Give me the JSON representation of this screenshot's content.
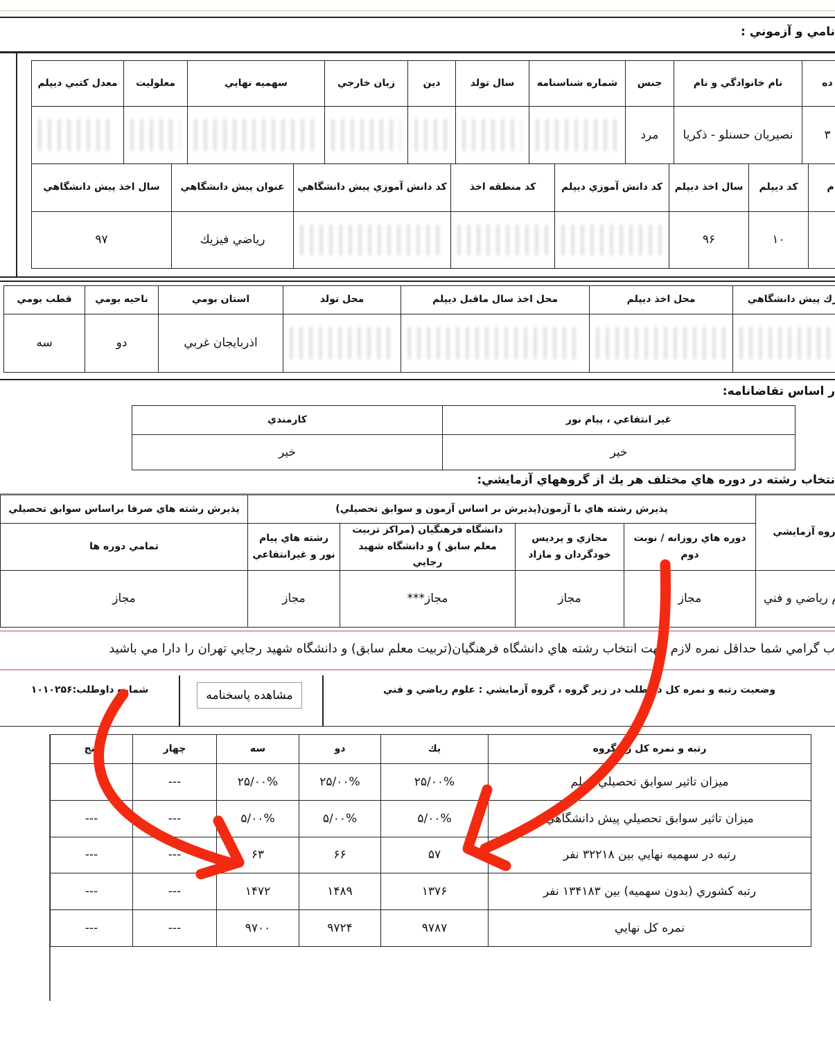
{
  "section_personal": {
    "title": "نامي و آزموني :",
    "headers": [
      "ده",
      "نام خانوادگي و نام",
      "جنس",
      "شماره شناسنامه",
      "سال تولد",
      "دين",
      "زبان خارجي",
      "سهميه نهايي",
      "معلوليت",
      "معدل كتبي ديپلم"
    ],
    "values": [
      "۳",
      "نصيريان حسنلو - ذكريا",
      "مرد",
      "",
      "",
      "",
      "",
      "",
      "",
      ""
    ],
    "headers2": [
      "م",
      "كد ديپلم",
      "سال اخذ ديپلم",
      "كد دانش آموزي ديپلم",
      "كد منطقه اخذ",
      "كد دانش آموزي پيش دانشگاهي",
      "عنوان پيش دانشگاهي",
      "سال اخذ پيش دانشگاهي"
    ],
    "values2": [
      "",
      "۱۰",
      "۹۶",
      "",
      "",
      "",
      "رياضي فيزيك",
      "۹۷"
    ]
  },
  "section_location": {
    "headers": [
      "رك پيش دانشگاهي",
      "محل اخذ ديپلم",
      "محل اخذ سال ماقبل ديپلم",
      "محل تولد",
      "استان بومي",
      "ناحيه بومي",
      "قطب بومي"
    ],
    "values": [
      "",
      "",
      "",
      "",
      "اذربايجان غربي",
      "دو",
      "سه"
    ]
  },
  "section_request": {
    "title": "ر اساس تقاضانامه:",
    "headers": [
      "غير انتفاعي ، پيام نور",
      "كارمندي"
    ],
    "values": [
      "خير",
      "خير"
    ]
  },
  "section_selection": {
    "title": "نتخاب رشته در دوره هاي مختلف هر يك از گروههاي آزمايشي:",
    "group_header": "روه آزمايشي",
    "exam_header": "پذيرش رشته هاي با آزمون(پذيرش بر اساس آزمون و سوابق تحصيلي)",
    "record_header": "پذيرش رشته هاي صرفا براساس سوابق تحصيلي",
    "sub_headers": [
      "دوره هاي روزانه / نوبت دوم",
      "مجازي و پرديس خودگردان و مازاد",
      "دانشگاه فرهنگيان (مراكز تربيت معلم سابق ) و دانشگاه شهيد رجايي",
      "رشته هاي پيام نور و غيرانتفاعي",
      "تمامي دوره ها"
    ],
    "group_value": "وم رياضي و فني",
    "values": [
      "مجاز",
      "مجاز",
      "مجاز***",
      "مجاز",
      "مجاز"
    ]
  },
  "notice": "ب گرامي شما حداقل نمره لازم جهت انتخاب رشته هاي دانشگاه فرهنگيان(تربيت معلم سابق) و دانشگاه شهيد رجايي تهران را دارا مي باشيد",
  "status": {
    "text": "وضعيت رتبه و نمره كل داوطلب در زير گروه ، گروه آزمايشي : علوم رياضي و فني",
    "answer_sheet_button": "مشاهده پاسخنامه",
    "candidate_number": "شماره داوطلب:۱۰۱۰۲۵۶"
  },
  "results": {
    "headers": [
      "رتبه و نمره كل زيرگروه",
      "يك",
      "دو",
      "سه",
      "چهار",
      "پنج"
    ],
    "rows": [
      [
        "ميزان تاثير سوابق تحصيلي ديپلم",
        "۲۵/۰۰%",
        "۲۵/۰۰%",
        "۲۵/۰۰%",
        "---",
        ""
      ],
      [
        "ميزان تاثير سوابق تحصيلي پيش دانشگاهي",
        "۵/۰۰%",
        "۵/۰۰%",
        "۵/۰۰%",
        "---",
        "---"
      ],
      [
        "رتبه در سهميه نهايي بين ۳۲۲۱۸ نفر",
        "۵۷",
        "۶۶",
        "۶۳",
        "---",
        "---"
      ],
      [
        "رتبه كشوري (بدون سهميه) بين ۱۳۴۱۸۳ نفر",
        "۱۳۷۶",
        "۱۴۸۹",
        "۱۴۷۲",
        "---",
        "---"
      ],
      [
        "نمره كل نهايي",
        "۹۷۸۷",
        "۹۷۲۴",
        "۹۷۰۰",
        "---",
        "---"
      ]
    ]
  },
  "annotation_color": "#f22a12"
}
